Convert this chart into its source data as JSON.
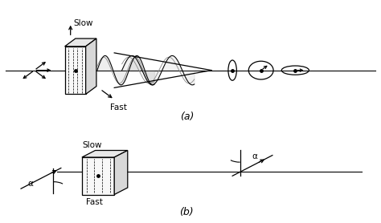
{
  "fig_width": 4.74,
  "fig_height": 2.78,
  "dpi": 100,
  "bg_color": "#ffffff",
  "line_color": "#000000",
  "gray_color": "#888888",
  "label_a": "(a)",
  "label_b": "(b)",
  "slow_label": "Slow",
  "fast_label": "Fast",
  "alpha_label": "α",
  "box_face_light": "#f8f8f8",
  "box_top_color": "#e8e8e8",
  "box_right_color": "#d8d8d8"
}
